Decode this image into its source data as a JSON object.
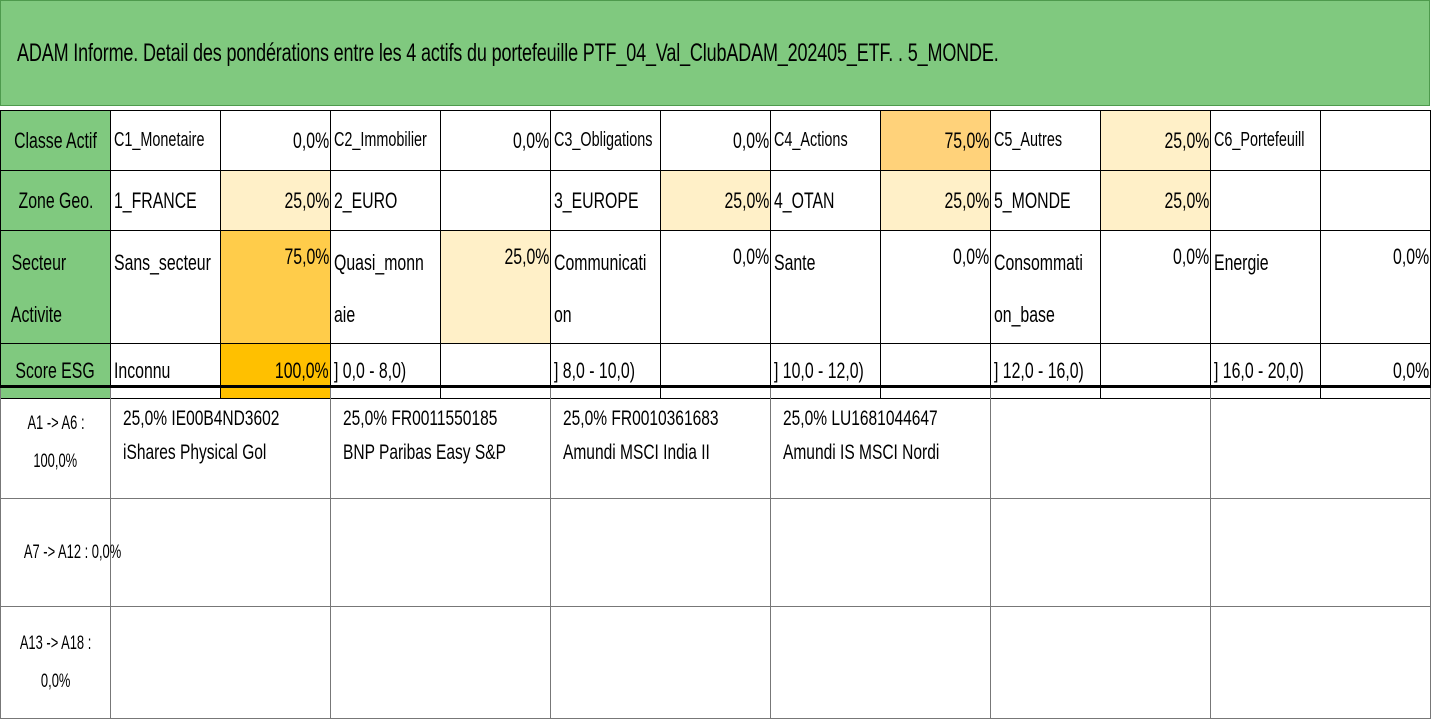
{
  "title": "ADAM Informe. Detail des pondérations entre les 4 actifs du portefeuille PTF_04_Val_ClubADAM_202405_ETF. . 5_MONDE.",
  "colors": {
    "header_green": "#80c97f",
    "highlight_strong": "#ffc000",
    "highlight_mid": "#ffcc4a",
    "highlight_light": "#fff0c8"
  },
  "classe_actif": {
    "label": "Classe Actif",
    "items": [
      {
        "name": "C1_Monetaire",
        "pct": "0,0%"
      },
      {
        "name": "C2_Immobilier",
        "pct": "0,0%"
      },
      {
        "name": "C3_Obligations",
        "pct": "0,0%"
      },
      {
        "name": "C4_Actions",
        "pct": "75,0%"
      },
      {
        "name": "C5_Autres",
        "pct": "25,0%"
      },
      {
        "name": "C6_Portefeuill",
        "pct": ""
      }
    ]
  },
  "zone_geo": {
    "label": "Zone Geo.",
    "items": [
      {
        "name": "1_FRANCE",
        "pct": "25,0%"
      },
      {
        "name": "2_EURO",
        "pct": ""
      },
      {
        "name": "3_EUROPE",
        "pct": "25,0%"
      },
      {
        "name": "4_OTAN",
        "pct": "25,0%"
      },
      {
        "name": "5_MONDE",
        "pct": "25,0%"
      },
      {
        "name": "",
        "pct": ""
      }
    ]
  },
  "secteur_activite": {
    "label_line1": "Secteur",
    "label_line2": "Activite",
    "items": [
      {
        "line1": "Sans_secteur",
        "line2": "",
        "pct": "75,0%"
      },
      {
        "line1": "Quasi_monn",
        "line2": "aie",
        "pct": "25,0%"
      },
      {
        "line1": "Communicati",
        "line2": "on",
        "pct": "0,0%"
      },
      {
        "line1": "Sante",
        "line2": "",
        "pct": "0,0%"
      },
      {
        "line1": "Consommati",
        "line2": "on_base",
        "pct": "0,0%"
      },
      {
        "line1": "Energie",
        "line2": "",
        "pct": "0,0%"
      }
    ]
  },
  "score_esg": {
    "label": "Score ESG",
    "items": [
      {
        "name": "Inconnu",
        "pct": "100,0%"
      },
      {
        "name": "] 0,0 - 8,0)",
        "pct": ""
      },
      {
        "name": "] 8,0 - 10,0)",
        "pct": ""
      },
      {
        "name": "] 10,0 - 12,0)",
        "pct": ""
      },
      {
        "name": "] 12,0 - 16,0)",
        "pct": ""
      },
      {
        "name": "] 16,0 - 20,0)",
        "pct": "0,0%"
      }
    ]
  },
  "asset_groups": [
    {
      "label_line1": "A1 -> A6 :",
      "label_line2": "100,0%",
      "assets": [
        {
          "line1": "25,0% IE00B4ND3602",
          "line2": "iShares Physical Gol"
        },
        {
          "line1": "25,0% FR0011550185",
          "line2": "BNP Paribas Easy S&P"
        },
        {
          "line1": "25,0% FR0010361683",
          "line2": "Amundi MSCI India II"
        },
        {
          "line1": "25,0% LU1681044647",
          "line2": "Amundi IS MSCI Nordi"
        },
        {
          "line1": "",
          "line2": ""
        },
        {
          "line1": "",
          "line2": ""
        }
      ]
    },
    {
      "label_line1": "A7 -> A12 : 0,0%",
      "label_line2": "",
      "assets": [
        {
          "line1": "",
          "line2": ""
        },
        {
          "line1": "",
          "line2": ""
        },
        {
          "line1": "",
          "line2": ""
        },
        {
          "line1": "",
          "line2": ""
        },
        {
          "line1": "",
          "line2": ""
        },
        {
          "line1": "",
          "line2": ""
        }
      ]
    },
    {
      "label_line1": "A13 -> A18 :",
      "label_line2": "0,0%",
      "assets": [
        {
          "line1": "",
          "line2": ""
        },
        {
          "line1": "",
          "line2": ""
        },
        {
          "line1": "",
          "line2": ""
        },
        {
          "line1": "",
          "line2": ""
        },
        {
          "line1": "",
          "line2": ""
        },
        {
          "line1": "",
          "line2": ""
        }
      ]
    }
  ]
}
